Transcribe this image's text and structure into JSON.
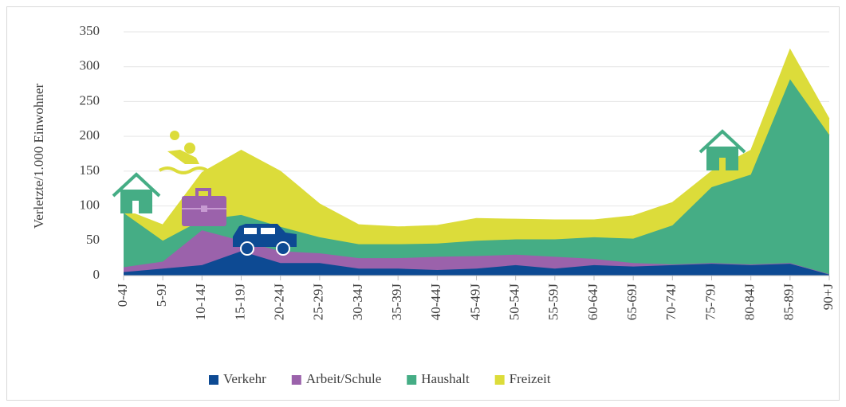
{
  "chart_data": {
    "type": "stacked_area",
    "y_label": "Verletzte/1.000 Einwohner",
    "categories": [
      "0-4J",
      "5-9J",
      "10-14J",
      "15-19J",
      "20-24J",
      "25-29J",
      "30-34J",
      "35-39J",
      "40-44J",
      "45-49J",
      "50-54J",
      "55-59J",
      "60-64J",
      "65-69J",
      "70-74J",
      "75-79J",
      "80-84J",
      "85-89J",
      "90+J"
    ],
    "series": [
      {
        "name": "Verkehr",
        "color": "#0d4a93",
        "values": [
          5,
          10,
          15,
          35,
          18,
          18,
          10,
          10,
          8,
          10,
          15,
          10,
          15,
          13,
          15,
          17,
          15,
          17,
          2
        ]
      },
      {
        "name": "Arbeit/Schule",
        "color": "#9b62ab",
        "values": [
          7,
          10,
          50,
          15,
          17,
          14,
          15,
          15,
          19,
          18,
          15,
          17,
          9,
          5,
          1,
          1,
          1,
          1,
          0
        ]
      },
      {
        "name": "Haushalt",
        "color": "#45ad85",
        "values": [
          78,
          30,
          15,
          37,
          35,
          23,
          20,
          20,
          19,
          22,
          22,
          25,
          31,
          35,
          56,
          109,
          129,
          264,
          200
        ]
      },
      {
        "name": "Freizeit",
        "color": "#dcdc3a",
        "values": [
          5,
          23,
          68,
          93,
          80,
          48,
          28,
          25,
          26,
          32,
          29,
          28,
          25,
          33,
          33,
          23,
          35,
          43,
          23
        ]
      }
    ],
    "ylim": [
      0,
      350
    ],
    "yticks": [
      0,
      50,
      100,
      150,
      200,
      250,
      300,
      350
    ],
    "grid": true,
    "legend": "bottom"
  }
}
